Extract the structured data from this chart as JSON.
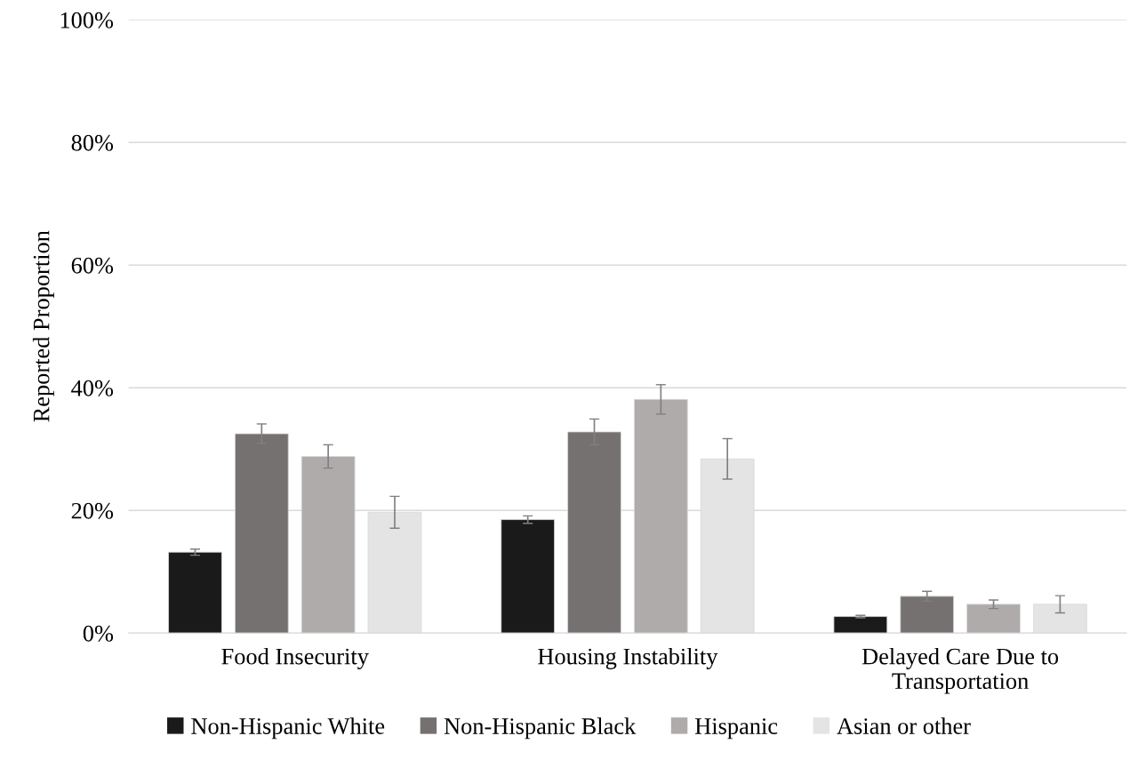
{
  "chart_data": {
    "type": "bar",
    "ylabel": "Reported Proportion",
    "categories": [
      "Food Insecurity",
      "Housing Instability",
      "Delayed Care Due to\nTransportation"
    ],
    "series": [
      {
        "name": "Non-Hispanic White",
        "color": "#1a1a1a",
        "values": [
          13.2,
          18.5,
          2.7
        ],
        "errors": [
          0.5,
          0.6,
          0.2
        ]
      },
      {
        "name": "Non-Hispanic Black",
        "color": "#757170",
        "values": [
          32.5,
          32.8,
          6.0
        ],
        "errors": [
          1.6,
          2.1,
          0.8
        ]
      },
      {
        "name": "Hispanic",
        "color": "#afabab",
        "values": [
          28.8,
          38.1,
          4.7
        ],
        "errors": [
          1.9,
          2.4,
          0.7
        ]
      },
      {
        "name": "Asian or other",
        "color": "#e4e4e4",
        "values": [
          19.7,
          28.4,
          4.7
        ],
        "errors": [
          2.6,
          3.3,
          1.4
        ]
      }
    ],
    "ylim": [
      0,
      100
    ],
    "yticks": [
      {
        "value": 0,
        "label": "0%"
      },
      {
        "value": 20,
        "label": "20%"
      },
      {
        "value": 40,
        "label": "40%"
      },
      {
        "value": 60,
        "label": "60%"
      },
      {
        "value": 80,
        "label": "80%"
      },
      {
        "value": 100,
        "label": "100%"
      }
    ],
    "grid": "y",
    "legend": "bottom"
  }
}
